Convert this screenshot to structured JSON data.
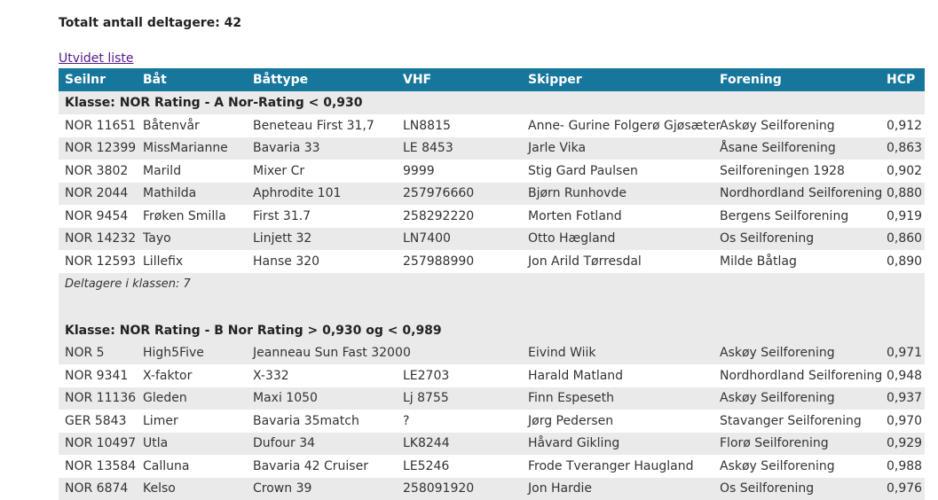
{
  "summary": {
    "total_label": "Totalt antall deltagere: 42"
  },
  "link": {
    "label": "Utvidet liste"
  },
  "headers": [
    "Seilnr",
    "Båt",
    "Båttype",
    "VHF",
    "Skipper",
    "Forening",
    "HCP"
  ],
  "classes": [
    {
      "title": "Klasse: NOR Rating - A Nor-Rating < 0,930",
      "rows": [
        [
          "NOR 11651",
          "Båtenvår",
          "Beneteau First 31,7",
          "LN8815",
          "Anne- Gurine Folgerø Gjøsæter",
          "Askøy Seilforening",
          "0,912"
        ],
        [
          "NOR 12399",
          "MissMarianne",
          "Bavaria 33",
          "LE 8453",
          "Jarle Vika",
          "Åsane Seilforening",
          "0,863"
        ],
        [
          "NOR 3802",
          "Marild",
          "Mixer Cr",
          "9999",
          "Stig Gard Paulsen",
          "Seilforeningen 1928",
          "0,902"
        ],
        [
          "NOR 2044",
          "Mathilda",
          "Aphrodite 101",
          "257976660",
          "Bjørn Runhovde",
          "Nordhordland Seilforening",
          "0,880"
        ],
        [
          "NOR 9454",
          "Frøken Smilla",
          "First 31.7",
          "258292220",
          "Morten Fotland",
          "Bergens Seilforening",
          "0,919"
        ],
        [
          "NOR 14232",
          "Tayo",
          "Linjett 32",
          "LN7400",
          "Otto Hægland",
          "Os Seilforening",
          "0,860"
        ],
        [
          "NOR 12593",
          "Lillefix",
          "Hanse 320",
          "257988990",
          "Jon Arild Tørresdal",
          "Milde Båtlag",
          "0,890"
        ]
      ],
      "count_label": "Deltagere i klassen: 7"
    },
    {
      "title": "Klasse: NOR Rating - B Nor Rating > 0,930 og < 0,989",
      "rows": [
        [
          "NOR 5",
          "High5Five",
          "Jeanneau Sun Fast 3200",
          "0",
          "Eivind Wiik",
          "Askøy Seilforening",
          "0,971"
        ],
        [
          "NOR 9341",
          "X-faktor",
          "X-332",
          "LE2703",
          "Harald Matland",
          "Nordhordland Seilforening",
          "0,948"
        ],
        [
          "NOR 11136",
          "Gleden",
          "Maxi 1050",
          "Lj 8755",
          "Finn Espeseth",
          "Askøy Seilforening",
          "0,937"
        ],
        [
          "GER 5843",
          "Limer",
          "Bavaria 35match",
          "?",
          "Jørg Pedersen",
          "Stavanger Seilforening",
          "0,970"
        ],
        [
          "NOR 10497",
          "Utla",
          "Dufour 34",
          "LK8244",
          "Håvard Gikling",
          "Florø Seilforening",
          "0,929"
        ],
        [
          "NOR 13584",
          "Calluna",
          "Bavaria 42 Cruiser",
          "LE5246",
          "Frode Tveranger Haugland",
          "Askøy Seilforening",
          "0,988"
        ],
        [
          "NOR 6874",
          "Kelso",
          "Crown 39",
          "258091920",
          "Jon Hardie",
          "Os Seilforening",
          "0,976"
        ]
      ]
    }
  ]
}
